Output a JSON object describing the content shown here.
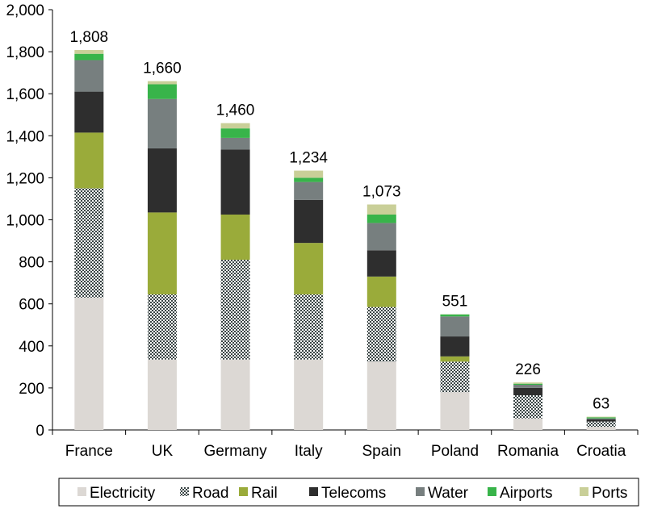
{
  "chart_data": {
    "type": "bar",
    "stacked": true,
    "title": "",
    "xlabel": "",
    "ylabel": "",
    "ylim": [
      0,
      2000
    ],
    "yticks": [
      0,
      200,
      400,
      600,
      800,
      1000,
      1200,
      1400,
      1600,
      1800,
      2000
    ],
    "ytick_labels": [
      "0",
      "200",
      "400",
      "600",
      "800",
      "1,000",
      "1,200",
      "1,400",
      "1,600",
      "1,800",
      "2,000"
    ],
    "grid": false,
    "legend_position": "bottom",
    "categories": [
      "France",
      "UK",
      "Germany",
      "Italy",
      "Spain",
      "Poland",
      "Romania",
      "Croatia"
    ],
    "totals": [
      1808,
      1660,
      1460,
      1234,
      1073,
      551,
      226,
      63
    ],
    "total_labels": [
      "1,808",
      "1,660",
      "1,460",
      "1,234",
      "1,073",
      "551",
      "226",
      "63"
    ],
    "series": [
      {
        "name": "Electricity",
        "color": "#dcd8d4",
        "pattern": "solid",
        "values": [
          630,
          335,
          335,
          335,
          325,
          180,
          55,
          15
        ]
      },
      {
        "name": "Road",
        "color": "#6b7b7b",
        "pattern": "dotted",
        "values": [
          520,
          310,
          475,
          310,
          260,
          145,
          110,
          25
        ]
      },
      {
        "name": "Rail",
        "color": "#9aab3a",
        "pattern": "solid",
        "values": [
          265,
          390,
          215,
          245,
          145,
          25,
          0,
          0
        ]
      },
      {
        "name": "Telecoms",
        "color": "#2e2e2e",
        "pattern": "solid",
        "values": [
          195,
          305,
          310,
          205,
          125,
          95,
          35,
          10
        ]
      },
      {
        "name": "Water",
        "color": "#777f7f",
        "pattern": "solid",
        "values": [
          150,
          235,
          55,
          85,
          130,
          95,
          15,
          5
        ]
      },
      {
        "name": "Airports",
        "color": "#38b44a",
        "pattern": "solid",
        "values": [
          30,
          70,
          45,
          20,
          40,
          10,
          5,
          5
        ]
      },
      {
        "name": "Ports",
        "color": "#c9cf98",
        "pattern": "solid",
        "values": [
          18,
          15,
          25,
          34,
          48,
          1,
          6,
          3
        ]
      }
    ]
  }
}
